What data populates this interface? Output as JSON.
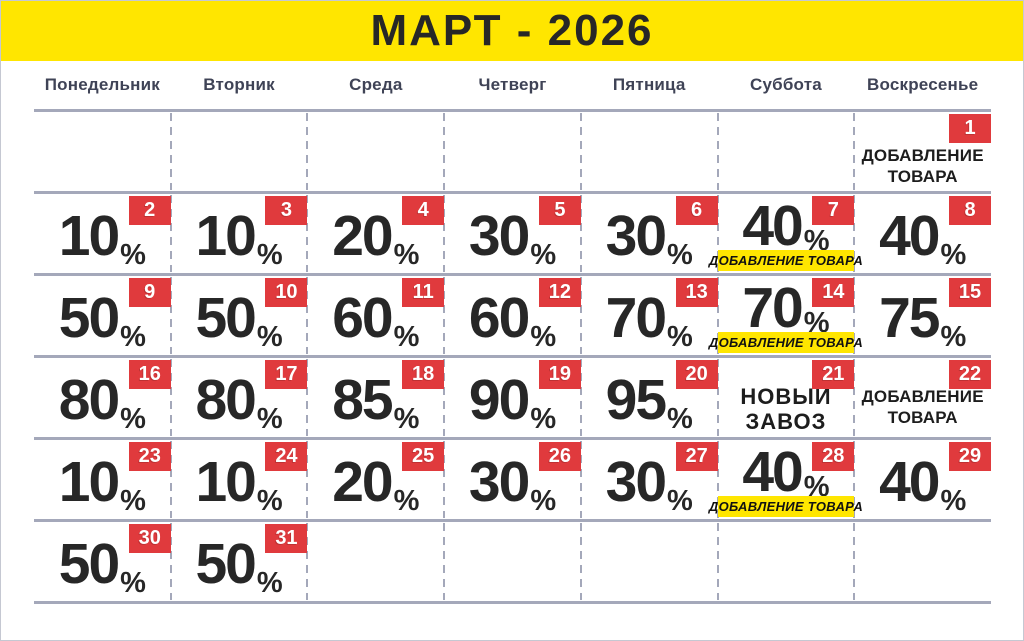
{
  "title": "МАРТ - 2026",
  "percent_sign": "%",
  "colors": {
    "yellow": "#ffe600",
    "red": "#e03a3d",
    "grid_line": "#a4a8ba",
    "dark_text": "#272727",
    "weekday_text": "#3f4356"
  },
  "weekdays": [
    "Понедельник",
    "Вторник",
    "Среда",
    "Четверг",
    "Пятница",
    "Суббота",
    "Воскресенье"
  ],
  "restock_label": "ДОБАВЛЕНИЕ ТОВАРА",
  "weeks": [
    [
      null,
      null,
      null,
      null,
      null,
      null,
      {
        "day": 1,
        "note": "ДОБАВЛЕНИЕ ТОВАРА"
      }
    ],
    [
      {
        "day": 2,
        "percent": "10"
      },
      {
        "day": 3,
        "percent": "10"
      },
      {
        "day": 4,
        "percent": "20"
      },
      {
        "day": 5,
        "percent": "30"
      },
      {
        "day": 6,
        "percent": "30"
      },
      {
        "day": 7,
        "percent": "40",
        "label": "ДОБАВЛЕНИЕ ТОВАРА"
      },
      {
        "day": 8,
        "percent": "40"
      }
    ],
    [
      {
        "day": 9,
        "percent": "50"
      },
      {
        "day": 10,
        "percent": "50"
      },
      {
        "day": 11,
        "percent": "60"
      },
      {
        "day": 12,
        "percent": "60"
      },
      {
        "day": 13,
        "percent": "70"
      },
      {
        "day": 14,
        "percent": "70",
        "label": "ДОБАВЛЕНИЕ ТОВАРА"
      },
      {
        "day": 15,
        "percent": "75"
      }
    ],
    [
      {
        "day": 16,
        "percent": "80"
      },
      {
        "day": 17,
        "percent": "80"
      },
      {
        "day": 18,
        "percent": "85"
      },
      {
        "day": 19,
        "percent": "90"
      },
      {
        "day": 20,
        "percent": "95"
      },
      {
        "day": 21,
        "note": "НОВЫЙ ЗАВОЗ"
      },
      {
        "day": 22,
        "note": "ДОБАВЛЕНИЕ ТОВАРА"
      }
    ],
    [
      {
        "day": 23,
        "percent": "10"
      },
      {
        "day": 24,
        "percent": "10"
      },
      {
        "day": 25,
        "percent": "20"
      },
      {
        "day": 26,
        "percent": "30"
      },
      {
        "day": 27,
        "percent": "30"
      },
      {
        "day": 28,
        "percent": "40",
        "label": "ДОБАВЛЕНИЕ ТОВАРА"
      },
      {
        "day": 29,
        "percent": "40"
      }
    ],
    [
      {
        "day": 30,
        "percent": "50"
      },
      {
        "day": 31,
        "percent": "50"
      },
      null,
      null,
      null,
      null,
      null
    ]
  ]
}
